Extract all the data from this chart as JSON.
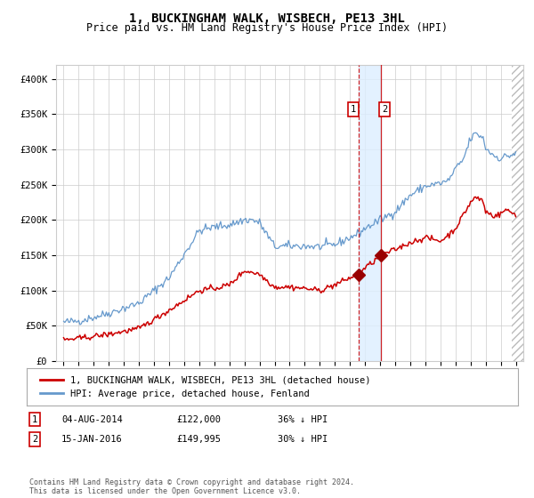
{
  "title": "1, BUCKINGHAM WALK, WISBECH, PE13 3HL",
  "subtitle": "Price paid vs. HM Land Registry's House Price Index (HPI)",
  "legend_entry1": "1, BUCKINGHAM WALK, WISBECH, PE13 3HL (detached house)",
  "legend_entry2": "HPI: Average price, detached house, Fenland",
  "table_row1": [
    "1",
    "04-AUG-2014",
    "£122,000",
    "36% ↓ HPI"
  ],
  "table_row2": [
    "2",
    "15-JAN-2016",
    "£149,995",
    "30% ↓ HPI"
  ],
  "footer": "Contains HM Land Registry data © Crown copyright and database right 2024.\nThis data is licensed under the Open Government Licence v3.0.",
  "hpi_color": "#6699cc",
  "price_color": "#cc0000",
  "marker_color": "#990000",
  "vline1_x": 2014.58,
  "vline2_x": 2016.04,
  "sale1_year": 2014.58,
  "sale1_price": 122000,
  "sale2_year": 2016.04,
  "sale2_price": 149995,
  "ylim": [
    0,
    420000
  ],
  "xlim_start": 1994.5,
  "xlim_end": 2025.5,
  "yticks": [
    0,
    50000,
    100000,
    150000,
    200000,
    250000,
    300000,
    350000,
    400000
  ],
  "ytick_labels": [
    "£0",
    "£50K",
    "£100K",
    "£150K",
    "£200K",
    "£250K",
    "£300K",
    "£350K",
    "£400K"
  ],
  "xticks": [
    1995,
    1996,
    1997,
    1998,
    1999,
    2000,
    2001,
    2002,
    2003,
    2004,
    2005,
    2006,
    2007,
    2008,
    2009,
    2010,
    2011,
    2012,
    2013,
    2014,
    2015,
    2016,
    2017,
    2018,
    2019,
    2020,
    2021,
    2022,
    2023,
    2024,
    2025
  ],
  "background_color": "#ffffff",
  "grid_color": "#cccccc",
  "hatch_color": "#bbbbbb",
  "shade_color": "#ddeeff",
  "hatch_start": 2024.75
}
